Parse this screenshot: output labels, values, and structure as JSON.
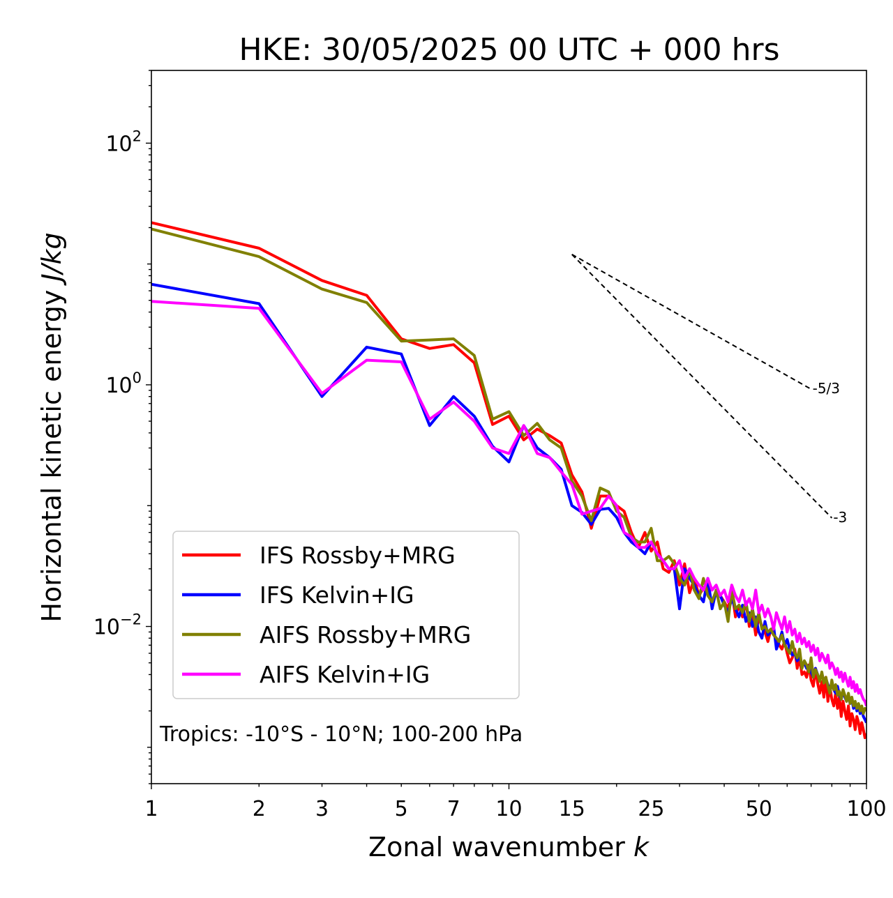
{
  "chart_data": {
    "type": "line",
    "title": "HKE: 30/05/2025 00 UTC + 000 hrs",
    "xlabel": "Zonal wavenumber ",
    "xlabel_var": "k",
    "ylabel": "Horizontal kinetic energy ",
    "ylabel_unit": "J/kg",
    "xscale": "log",
    "yscale": "log",
    "xlim": [
      1,
      100
    ],
    "ylim": [
      0.0005,
      400
    ],
    "xticks": [
      1,
      2,
      3,
      5,
      7,
      10,
      15,
      25,
      50,
      100
    ],
    "xtick_labels": [
      "1",
      "2",
      "3",
      "5",
      "7",
      "10",
      "15",
      "25",
      "50",
      "100"
    ],
    "yticks": [
      0.01,
      1,
      100
    ],
    "ytick_base": "10",
    "ytick_exponents": [
      "−2",
      "0",
      "2"
    ],
    "grid": false,
    "legend_position": "lower-left",
    "annotation": "Tropics: -10°S - 10°N; 100-200 hPa",
    "reference_lines": [
      {
        "label": "-5/3",
        "slope": -1.6667,
        "x_start": 15,
        "y_start": 12,
        "x_end": 70
      },
      {
        "label": "-3",
        "slope": -3,
        "x_start": 15,
        "y_start": 12,
        "x_end": 80
      }
    ],
    "series": [
      {
        "name": "IFS Rossby+MRG",
        "color": "#ff0000",
        "x": [
          1,
          2,
          3,
          4,
          5,
          6,
          7,
          8,
          9,
          10,
          11,
          12,
          13,
          14,
          15,
          16,
          17,
          18,
          19,
          20,
          21,
          22,
          23,
          24,
          25,
          26,
          27,
          28,
          29,
          30,
          31,
          32,
          33,
          34,
          35,
          36,
          37,
          38,
          39,
          40,
          41,
          42,
          43,
          44,
          45,
          46,
          47,
          48,
          49,
          50,
          51,
          52,
          53,
          54,
          55,
          56,
          57,
          58,
          59,
          60,
          61,
          62,
          63,
          64,
          65,
          66,
          67,
          68,
          69,
          70,
          71,
          72,
          73,
          74,
          75,
          76,
          77,
          78,
          79,
          80,
          81,
          82,
          83,
          84,
          85,
          86,
          87,
          88,
          89,
          90,
          91,
          92,
          93,
          94,
          95,
          96,
          97,
          98,
          99,
          100
        ],
        "values": [
          22,
          13.5,
          7.3,
          5.5,
          2.4,
          2.0,
          2.15,
          1.52,
          0.47,
          0.55,
          0.35,
          0.43,
          0.38,
          0.33,
          0.18,
          0.13,
          0.065,
          0.12,
          0.12,
          0.1,
          0.09,
          0.06,
          0.045,
          0.06,
          0.042,
          0.05,
          0.03,
          0.028,
          0.035,
          0.022,
          0.033,
          0.019,
          0.025,
          0.018,
          0.021,
          0.022,
          0.015,
          0.02,
          0.018,
          0.016,
          0.014,
          0.02,
          0.012,
          0.015,
          0.012,
          0.016,
          0.01,
          0.013,
          0.0085,
          0.012,
          0.01,
          0.009,
          0.0075,
          0.0095,
          0.0085,
          0.008,
          0.007,
          0.0065,
          0.0075,
          0.006,
          0.005,
          0.0055,
          0.0065,
          0.0045,
          0.0055,
          0.004,
          0.0042,
          0.0038,
          0.0048,
          0.0036,
          0.0032,
          0.0045,
          0.0034,
          0.0028,
          0.0035,
          0.0026,
          0.0038,
          0.0024,
          0.0032,
          0.0025,
          0.0022,
          0.0028,
          0.0021,
          0.0026,
          0.0018,
          0.0024,
          0.002,
          0.0017,
          0.0022,
          0.0015,
          0.0019,
          0.0017,
          0.0014,
          0.0018,
          0.0016,
          0.0013,
          0.0016,
          0.0014,
          0.0012,
          0.0013
        ]
      },
      {
        "name": "IFS Kelvin+IG",
        "color": "#0000ff",
        "x": [
          1,
          2,
          3,
          4,
          5,
          6,
          7,
          8,
          9,
          10,
          11,
          12,
          13,
          14,
          15,
          16,
          17,
          18,
          19,
          20,
          21,
          22,
          23,
          24,
          25,
          26,
          27,
          28,
          29,
          30,
          31,
          32,
          33,
          34,
          35,
          36,
          37,
          38,
          39,
          40,
          41,
          42,
          43,
          44,
          45,
          46,
          47,
          48,
          49,
          50,
          51,
          52,
          53,
          54,
          55,
          56,
          57,
          58,
          59,
          60,
          61,
          62,
          63,
          64,
          65,
          66,
          67,
          68,
          69,
          70,
          71,
          72,
          73,
          74,
          75,
          76,
          77,
          78,
          79,
          80,
          81,
          82,
          83,
          84,
          85,
          86,
          87,
          88,
          89,
          90,
          91,
          92,
          93,
          94,
          95,
          96,
          97,
          98,
          99,
          100
        ],
        "values": [
          6.8,
          4.7,
          0.8,
          2.05,
          1.8,
          0.46,
          0.8,
          0.55,
          0.31,
          0.23,
          0.46,
          0.3,
          0.25,
          0.2,
          0.1,
          0.088,
          0.07,
          0.093,
          0.095,
          0.08,
          0.06,
          0.05,
          0.045,
          0.04,
          0.05,
          0.04,
          0.035,
          0.03,
          0.03,
          0.014,
          0.03,
          0.025,
          0.022,
          0.018,
          0.016,
          0.025,
          0.014,
          0.02,
          0.018,
          0.015,
          0.013,
          0.017,
          0.014,
          0.012,
          0.015,
          0.011,
          0.013,
          0.01,
          0.012,
          0.009,
          0.008,
          0.011,
          0.0085,
          0.009,
          0.01,
          0.0065,
          0.0075,
          0.009,
          0.007,
          0.0078,
          0.0065,
          0.0058,
          0.006,
          0.0052,
          0.0056,
          0.0048,
          0.005,
          0.0045,
          0.0047,
          0.0042,
          0.0038,
          0.0045,
          0.004,
          0.0036,
          0.0041,
          0.0035,
          0.0037,
          0.0033,
          0.003,
          0.0034,
          0.003,
          0.0028,
          0.0032,
          0.0027,
          0.0025,
          0.0029,
          0.0026,
          0.0024,
          0.0027,
          0.0023,
          0.0025,
          0.0021,
          0.0023,
          0.002,
          0.0022,
          0.0019,
          0.0021,
          0.0018,
          0.0017,
          0.0016
        ]
      },
      {
        "name": "AIFS Rossby+MRG",
        "color": "#808000",
        "x": [
          1,
          2,
          3,
          4,
          5,
          6,
          7,
          8,
          9,
          10,
          11,
          12,
          13,
          14,
          15,
          16,
          17,
          18,
          19,
          20,
          21,
          22,
          23,
          24,
          25,
          26,
          27,
          28,
          29,
          30,
          31,
          32,
          33,
          34,
          35,
          36,
          37,
          38,
          39,
          40,
          41,
          42,
          43,
          44,
          45,
          46,
          47,
          48,
          49,
          50,
          51,
          52,
          53,
          54,
          55,
          56,
          57,
          58,
          59,
          60,
          61,
          62,
          63,
          64,
          65,
          66,
          67,
          68,
          69,
          70,
          71,
          72,
          73,
          74,
          75,
          76,
          77,
          78,
          79,
          80,
          81,
          82,
          83,
          84,
          85,
          86,
          87,
          88,
          89,
          90,
          91,
          92,
          93,
          94,
          95,
          96,
          97,
          98,
          99,
          100
        ],
        "values": [
          19.5,
          11.5,
          6.2,
          4.8,
          2.3,
          2.35,
          2.4,
          1.75,
          0.52,
          0.6,
          0.38,
          0.48,
          0.35,
          0.3,
          0.16,
          0.12,
          0.075,
          0.14,
          0.13,
          0.09,
          0.08,
          0.055,
          0.05,
          0.05,
          0.065,
          0.035,
          0.035,
          0.038,
          0.033,
          0.025,
          0.022,
          0.03,
          0.02,
          0.017,
          0.025,
          0.018,
          0.016,
          0.02,
          0.014,
          0.016,
          0.011,
          0.02,
          0.014,
          0.015,
          0.013,
          0.016,
          0.011,
          0.014,
          0.01,
          0.013,
          0.0095,
          0.01,
          0.009,
          0.0095,
          0.0085,
          0.008,
          0.0075,
          0.0085,
          0.007,
          0.0065,
          0.006,
          0.0075,
          0.006,
          0.0055,
          0.0065,
          0.0045,
          0.0052,
          0.0048,
          0.0042,
          0.0055,
          0.0038,
          0.0044,
          0.004,
          0.0035,
          0.0042,
          0.0034,
          0.0038,
          0.0032,
          0.0028,
          0.0036,
          0.003,
          0.0033,
          0.0027,
          0.0029,
          0.0025,
          0.003,
          0.0027,
          0.0024,
          0.0028,
          0.0023,
          0.0026,
          0.0022,
          0.0024,
          0.0021,
          0.0023,
          0.002,
          0.0022,
          0.0019,
          0.0021,
          0.002
        ]
      },
      {
        "name": "AIFS Kelvin+IG",
        "color": "#ff00ff",
        "x": [
          1,
          2,
          3,
          4,
          5,
          6,
          7,
          8,
          9,
          10,
          11,
          12,
          13,
          14,
          15,
          16,
          17,
          18,
          19,
          20,
          21,
          22,
          23,
          24,
          25,
          26,
          27,
          28,
          29,
          30,
          31,
          32,
          33,
          34,
          35,
          36,
          37,
          38,
          39,
          40,
          41,
          42,
          43,
          44,
          45,
          46,
          47,
          48,
          49,
          50,
          51,
          52,
          53,
          54,
          55,
          56,
          57,
          58,
          59,
          60,
          61,
          62,
          63,
          64,
          65,
          66,
          67,
          68,
          69,
          70,
          71,
          72,
          73,
          74,
          75,
          76,
          77,
          78,
          79,
          80,
          81,
          82,
          83,
          84,
          85,
          86,
          87,
          88,
          89,
          90,
          91,
          92,
          93,
          94,
          95,
          96,
          97,
          98,
          99,
          100
        ],
        "values": [
          4.9,
          4.3,
          0.85,
          1.6,
          1.55,
          0.52,
          0.72,
          0.5,
          0.3,
          0.27,
          0.46,
          0.27,
          0.25,
          0.19,
          0.15,
          0.085,
          0.09,
          0.095,
          0.12,
          0.1,
          0.06,
          0.055,
          0.045,
          0.045,
          0.05,
          0.04,
          0.035,
          0.03,
          0.03,
          0.035,
          0.025,
          0.03,
          0.025,
          0.022,
          0.02,
          0.025,
          0.02,
          0.022,
          0.018,
          0.02,
          0.016,
          0.022,
          0.018,
          0.016,
          0.02,
          0.015,
          0.017,
          0.014,
          0.02,
          0.013,
          0.015,
          0.012,
          0.014,
          0.012,
          0.0095,
          0.013,
          0.011,
          0.0095,
          0.012,
          0.009,
          0.011,
          0.0085,
          0.0095,
          0.0075,
          0.0088,
          0.0072,
          0.008,
          0.0068,
          0.0075,
          0.0062,
          0.007,
          0.0058,
          0.0066,
          0.0052,
          0.006,
          0.0055,
          0.005,
          0.0058,
          0.0045,
          0.005,
          0.0046,
          0.004,
          0.0045,
          0.0038,
          0.0042,
          0.0035,
          0.0041,
          0.0036,
          0.0032,
          0.0038,
          0.0031,
          0.0035,
          0.0029,
          0.0033,
          0.0028,
          0.003,
          0.0027,
          0.0025,
          0.0024,
          0.0022
        ]
      }
    ]
  }
}
